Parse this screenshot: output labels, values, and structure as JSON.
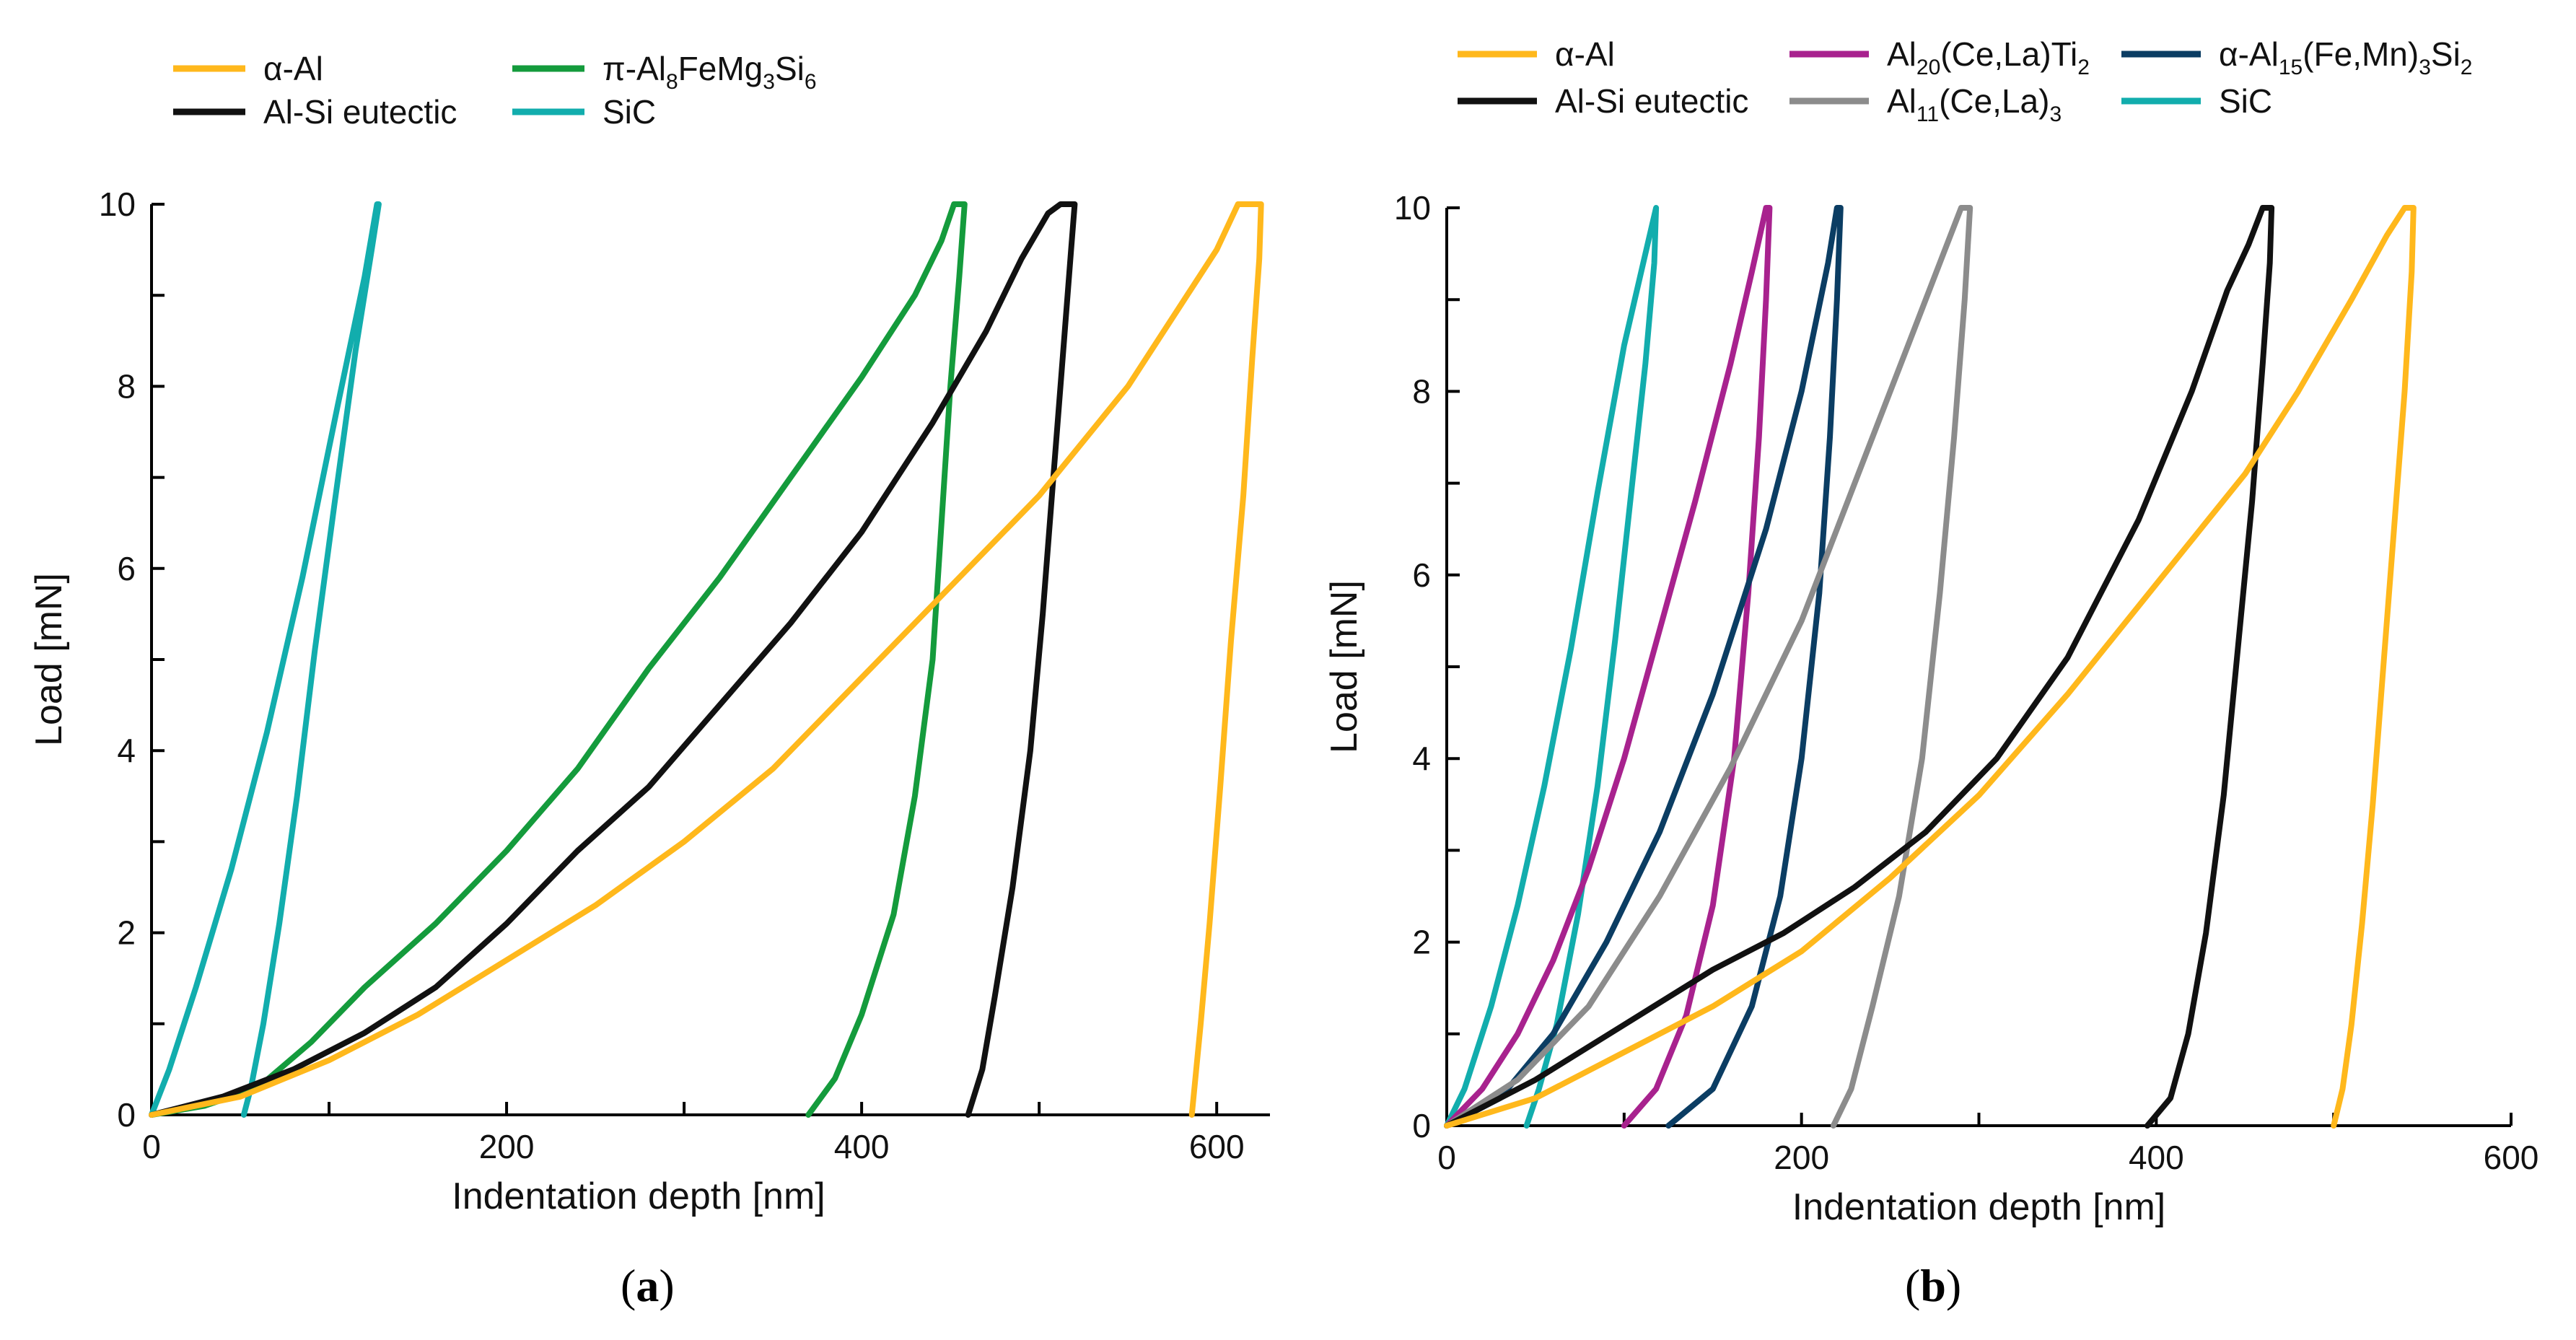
{
  "colors": {
    "alpha_al": "#FFB81C",
    "al_si": "#111111",
    "pi": "#149B3C",
    "sic": "#12ADAD",
    "al20": "#A8228E",
    "al15": "#0B3D63",
    "al11": "#8C8C8C",
    "axis": "#000000"
  },
  "chart_data": [
    {
      "type": "line",
      "panel_label": "a",
      "xlabel": "Indentation depth [nm]",
      "ylabel": "Load [mN]",
      "xlim": [
        0,
        630
      ],
      "ylim": [
        0,
        10
      ],
      "xticks": [
        "0",
        "200",
        "400",
        "600"
      ],
      "yticks": [
        "0",
        "2",
        "4",
        "6",
        "8",
        "10"
      ],
      "legend": [
        {
          "key": "alpha_al",
          "label": "α-Al"
        },
        {
          "key": "pi",
          "label": "π-Al",
          "sub1": "8",
          "mid": "FeMg",
          "sub2": "3",
          "mid2": "Si",
          "sub3": "6"
        },
        {
          "key": "al_si",
          "label": "Al-Si eutectic"
        },
        {
          "key": "sic",
          "label": "SiC"
        }
      ],
      "series": [
        {
          "key": "sic",
          "name": "SiC",
          "points": [
            [
              0,
              0
            ],
            [
              10,
              0.5
            ],
            [
              25,
              1.4
            ],
            [
              45,
              2.7
            ],
            [
              65,
              4.2
            ],
            [
              85,
              5.9
            ],
            [
              105,
              7.8
            ],
            [
              120,
              9.2
            ],
            [
              127,
              10
            ],
            [
              128,
              10
            ],
            [
              124,
              9.5
            ],
            [
              115,
              8.4
            ],
            [
              103,
              6.7
            ],
            [
              92,
              5.1
            ],
            [
              82,
              3.5
            ],
            [
              72,
              2.1
            ],
            [
              63,
              1.0
            ],
            [
              56,
              0.3
            ],
            [
              52,
              0
            ]
          ]
        },
        {
          "key": "pi",
          "name": "π-Al8FeMg3Si6",
          "points": [
            [
              0,
              0
            ],
            [
              30,
              0.1
            ],
            [
              60,
              0.3
            ],
            [
              90,
              0.8
            ],
            [
              120,
              1.4
            ],
            [
              160,
              2.1
            ],
            [
              200,
              2.9
            ],
            [
              240,
              3.8
            ],
            [
              280,
              4.9
            ],
            [
              320,
              5.9
            ],
            [
              360,
              7.0
            ],
            [
              400,
              8.1
            ],
            [
              430,
              9.0
            ],
            [
              445,
              9.6
            ],
            [
              452,
              10
            ],
            [
              458,
              10
            ],
            [
              455,
              9.2
            ],
            [
              450,
              8.0
            ],
            [
              445,
              6.5
            ],
            [
              440,
              5.0
            ],
            [
              430,
              3.5
            ],
            [
              418,
              2.2
            ],
            [
              400,
              1.1
            ],
            [
              385,
              0.4
            ],
            [
              370,
              0
            ]
          ]
        },
        {
          "key": "al_si",
          "name": "Al-Si eutectic",
          "points": [
            [
              0,
              0
            ],
            [
              40,
              0.2
            ],
            [
              80,
              0.5
            ],
            [
              120,
              0.9
            ],
            [
              160,
              1.4
            ],
            [
              200,
              2.1
            ],
            [
              240,
              2.9
            ],
            [
              280,
              3.6
            ],
            [
              320,
              4.5
            ],
            [
              360,
              5.4
            ],
            [
              400,
              6.4
            ],
            [
              440,
              7.6
            ],
            [
              470,
              8.6
            ],
            [
              490,
              9.4
            ],
            [
              505,
              9.9
            ],
            [
              512,
              10
            ],
            [
              520,
              10
            ],
            [
              518,
              9.5
            ],
            [
              514,
              8.5
            ],
            [
              508,
              7.0
            ],
            [
              502,
              5.5
            ],
            [
              495,
              4.0
            ],
            [
              485,
              2.5
            ],
            [
              475,
              1.3
            ],
            [
              468,
              0.5
            ],
            [
              460,
              0
            ]
          ]
        },
        {
          "key": "alpha_al",
          "name": "α-Al",
          "points": [
            [
              0,
              0
            ],
            [
              50,
              0.2
            ],
            [
              100,
              0.6
            ],
            [
              150,
              1.1
            ],
            [
              200,
              1.7
            ],
            [
              250,
              2.3
            ],
            [
              300,
              3.0
            ],
            [
              350,
              3.8
            ],
            [
              400,
              4.8
            ],
            [
              450,
              5.8
            ],
            [
              500,
              6.8
            ],
            [
              550,
              8.0
            ],
            [
              580,
              8.9
            ],
            [
              600,
              9.5
            ],
            [
              612,
              10
            ],
            [
              625,
              10
            ],
            [
              624,
              9.4
            ],
            [
              620,
              8.3
            ],
            [
              615,
              6.8
            ],
            [
              608,
              5.2
            ],
            [
              602,
              3.6
            ],
            [
              596,
              2.1
            ],
            [
              591,
              1.0
            ],
            [
              586,
              0
            ]
          ]
        }
      ]
    },
    {
      "type": "line",
      "panel_label": "b",
      "xlabel": "Indentation depth [nm]",
      "ylabel": "Load [mN]",
      "xlim": [
        0,
        600
      ],
      "ylim": [
        0,
        10
      ],
      "xticks": [
        "0",
        "200",
        "400",
        "600"
      ],
      "yticks": [
        "0",
        "2",
        "4",
        "6",
        "8",
        "10"
      ],
      "legend": [
        {
          "key": "alpha_al",
          "label": "α-Al"
        },
        {
          "key": "al20",
          "label": "Al",
          "sub1": "20",
          "mid": "(Ce,La)Ti",
          "sub2": "2"
        },
        {
          "key": "al15",
          "label": "α-Al",
          "sub1": "15",
          "mid": "(Fe,Mn)",
          "sub2": "3",
          "mid2": "Si",
          "sub3": "2"
        },
        {
          "key": "al_si",
          "label": "Al-Si eutectic"
        },
        {
          "key": "al11",
          "label": "Al",
          "sub1": "11",
          "mid": "(Ce,La)",
          "sub2": "3"
        },
        {
          "key": "sic",
          "label": "SiC"
        }
      ],
      "series": [
        {
          "key": "sic",
          "name": "SiC",
          "points": [
            [
              0,
              0
            ],
            [
              10,
              0.4
            ],
            [
              25,
              1.3
            ],
            [
              40,
              2.4
            ],
            [
              55,
              3.7
            ],
            [
              70,
              5.2
            ],
            [
              85,
              6.9
            ],
            [
              100,
              8.5
            ],
            [
              112,
              9.5
            ],
            [
              118,
              10
            ],
            [
              117,
              9.4
            ],
            [
              112,
              8.3
            ],
            [
              104,
              6.9
            ],
            [
              95,
              5.3
            ],
            [
              85,
              3.7
            ],
            [
              74,
              2.3
            ],
            [
              62,
              1.1
            ],
            [
              52,
              0.4
            ],
            [
              45,
              0
            ]
          ]
        },
        {
          "key": "al20",
          "name": "Al20(Ce,La)Ti2",
          "points": [
            [
              0,
              0
            ],
            [
              20,
              0.4
            ],
            [
              40,
              1.0
            ],
            [
              60,
              1.8
            ],
            [
              80,
              2.8
            ],
            [
              100,
              4.0
            ],
            [
              120,
              5.4
            ],
            [
              140,
              6.8
            ],
            [
              160,
              8.3
            ],
            [
              172,
              9.3
            ],
            [
              180,
              10
            ],
            [
              182,
              10
            ],
            [
              180,
              9.0
            ],
            [
              176,
              7.5
            ],
            [
              170,
              5.8
            ],
            [
              162,
              4.0
            ],
            [
              150,
              2.4
            ],
            [
              135,
              1.2
            ],
            [
              118,
              0.4
            ],
            [
              100,
              0
            ]
          ]
        },
        {
          "key": "al15",
          "name": "α-Al15(Fe,Mn)3Si2",
          "points": [
            [
              0,
              0
            ],
            [
              30,
              0.3
            ],
            [
              60,
              1.0
            ],
            [
              90,
              2.0
            ],
            [
              120,
              3.2
            ],
            [
              150,
              4.7
            ],
            [
              180,
              6.5
            ],
            [
              200,
              8.0
            ],
            [
              215,
              9.4
            ],
            [
              220,
              10
            ],
            [
              222,
              10
            ],
            [
              220,
              9.0
            ],
            [
              216,
              7.5
            ],
            [
              210,
              5.8
            ],
            [
              200,
              4.0
            ],
            [
              188,
              2.5
            ],
            [
              172,
              1.3
            ],
            [
              150,
              0.4
            ],
            [
              125,
              0
            ]
          ]
        },
        {
          "key": "al11",
          "name": "Al11(Ce,La)3",
          "points": [
            [
              0,
              0
            ],
            [
              40,
              0.5
            ],
            [
              80,
              1.3
            ],
            [
              120,
              2.5
            ],
            [
              160,
              3.9
            ],
            [
              200,
              5.5
            ],
            [
              230,
              7.0
            ],
            [
              260,
              8.5
            ],
            [
              280,
              9.5
            ],
            [
              290,
              10
            ],
            [
              295,
              10
            ],
            [
              292,
              9.0
            ],
            [
              286,
              7.5
            ],
            [
              278,
              5.8
            ],
            [
              268,
              4.0
            ],
            [
              255,
              2.5
            ],
            [
              240,
              1.3
            ],
            [
              228,
              0.4
            ],
            [
              218,
              0
            ]
          ]
        },
        {
          "key": "al_si",
          "name": "Al-Si eutectic",
          "points": [
            [
              0,
              0
            ],
            [
              50,
              0.5
            ],
            [
              100,
              1.1
            ],
            [
              150,
              1.7
            ],
            [
              190,
              2.1
            ],
            [
              230,
              2.6
            ],
            [
              270,
              3.2
            ],
            [
              310,
              4.0
            ],
            [
              350,
              5.1
            ],
            [
              390,
              6.6
            ],
            [
              420,
              8.0
            ],
            [
              440,
              9.1
            ],
            [
              452,
              9.6
            ],
            [
              460,
              10
            ],
            [
              465,
              10
            ],
            [
              464,
              9.4
            ],
            [
              460,
              8.3
            ],
            [
              454,
              6.8
            ],
            [
              446,
              5.2
            ],
            [
              438,
              3.6
            ],
            [
              428,
              2.1
            ],
            [
              418,
              1.0
            ],
            [
              408,
              0.3
            ],
            [
              395,
              0
            ]
          ]
        },
        {
          "key": "alpha_al",
          "name": "α-Al",
          "points": [
            [
              0,
              0
            ],
            [
              50,
              0.3
            ],
            [
              100,
              0.8
            ],
            [
              150,
              1.3
            ],
            [
              200,
              1.9
            ],
            [
              250,
              2.7
            ],
            [
              300,
              3.6
            ],
            [
              350,
              4.7
            ],
            [
              400,
              5.9
            ],
            [
              450,
              7.1
            ],
            [
              480,
              8.0
            ],
            [
              510,
              9.0
            ],
            [
              530,
              9.7
            ],
            [
              540,
              10
            ],
            [
              545,
              10
            ],
            [
              544,
              9.3
            ],
            [
              540,
              8.0
            ],
            [
              534,
              6.5
            ],
            [
              528,
              5.0
            ],
            [
              522,
              3.5
            ],
            [
              516,
              2.2
            ],
            [
              510,
              1.1
            ],
            [
              505,
              0.4
            ],
            [
              500,
              0
            ]
          ]
        }
      ]
    }
  ]
}
